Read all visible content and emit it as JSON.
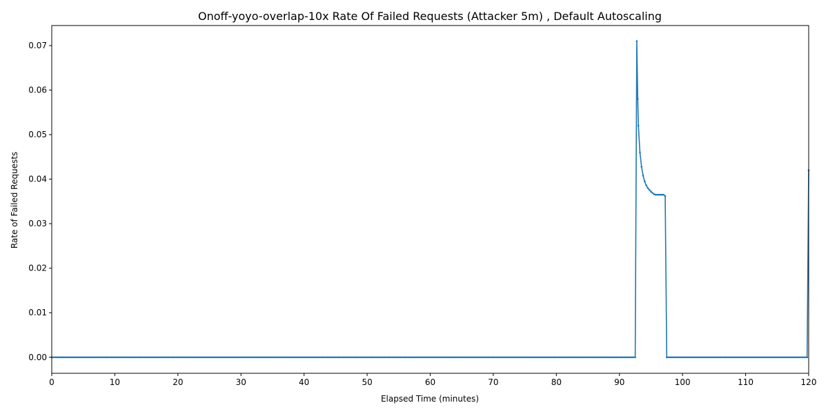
{
  "chart_data": {
    "type": "line",
    "title": "Onoff-yoyo-overlap-10x Rate Of Failed Requests (Attacker 5m) , Default Autoscaling",
    "xlabel": "Elapsed Time (minutes)",
    "ylabel": "Rate of Failed Requests",
    "xlim": [
      0,
      120
    ],
    "ylim": [
      -0.0036,
      0.0745
    ],
    "xticks": [
      0,
      10,
      20,
      30,
      40,
      50,
      60,
      70,
      80,
      90,
      100,
      110,
      120
    ],
    "yticks": [
      0.0,
      0.01,
      0.02,
      0.03,
      0.04,
      0.05,
      0.06,
      0.07
    ],
    "ytick_labels": [
      "0.00",
      "0.01",
      "0.02",
      "0.03",
      "0.04",
      "0.05",
      "0.06",
      "0.07"
    ],
    "grid": false,
    "series": [
      {
        "color": "#1f77b4",
        "baseline": {
          "x_start": 0,
          "x_end": 92.5,
          "step": 0.25,
          "y": 0.0
        },
        "points": [
          [
            92.5,
            0.0
          ],
          [
            92.75,
            0.071
          ],
          [
            92.9,
            0.058
          ],
          [
            93.0,
            0.052
          ],
          [
            93.25,
            0.046
          ],
          [
            93.5,
            0.0428
          ],
          [
            93.75,
            0.0408
          ],
          [
            94.0,
            0.0395
          ],
          [
            94.25,
            0.0386
          ],
          [
            94.5,
            0.038
          ],
          [
            94.75,
            0.0376
          ],
          [
            95.0,
            0.0372
          ],
          [
            95.25,
            0.0369
          ],
          [
            95.5,
            0.0366
          ],
          [
            95.75,
            0.0365
          ],
          [
            96.0,
            0.0365
          ],
          [
            96.25,
            0.0365
          ],
          [
            96.5,
            0.0365
          ],
          [
            96.75,
            0.0365
          ],
          [
            97.0,
            0.0365
          ],
          [
            97.25,
            0.0362
          ],
          [
            97.5,
            0.0
          ]
        ],
        "tail": {
          "x_start": 97.5,
          "x_end": 119.75,
          "step": 0.25,
          "y": 0.0
        },
        "end_points": [
          [
            119.75,
            0.0
          ],
          [
            120.0,
            0.042
          ]
        ]
      }
    ]
  }
}
